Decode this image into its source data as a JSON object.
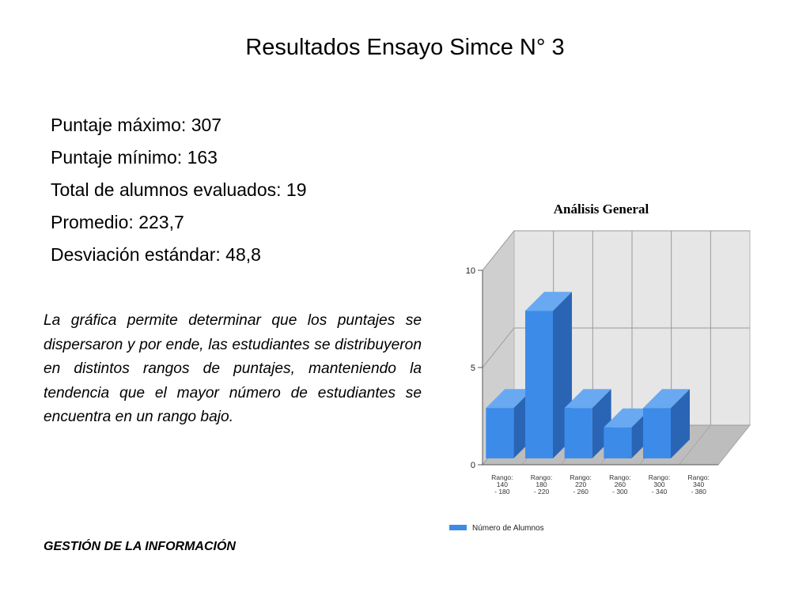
{
  "slide": {
    "title": "Resultados Ensayo Simce N° 3",
    "stats": [
      "Puntaje máximo: 307",
      "Puntaje mínimo: 163",
      "Total de alumnos evaluados: 19",
      "Promedio: 223,7",
      "Desviación estándar: 48,8"
    ],
    "description": "La gráfica permite determinar que los puntajes se dispersaron y por ende, las estudiantes se distribuyeron en distintos rangos de puntajes, manteniendo la tendencia que el mayor número de estudiantes se encuentra en un rango bajo.",
    "footer": "GESTIÓN DE LA INFORMACIÓN"
  },
  "chart_data": {
    "type": "bar",
    "title": "Análisis General",
    "categories": [
      [
        "Rango:",
        "140",
        "- 180"
      ],
      [
        "Rango:",
        "180",
        "- 220"
      ],
      [
        "Rango:",
        "220",
        "- 260"
      ],
      [
        "Rango:",
        "260",
        "- 300"
      ],
      [
        "Rango:",
        "300",
        "- 340"
      ],
      [
        "Rango:",
        "340",
        "- 380"
      ]
    ],
    "series": [
      {
        "name": "Número de Alumnos",
        "values": [
          3,
          8,
          3,
          2,
          3,
          0
        ]
      }
    ],
    "ylim": [
      0,
      10
    ],
    "yticks": [
      0,
      5,
      10
    ],
    "grid": true,
    "three_d": true,
    "legend": "bottom",
    "colors": {
      "bar_front": "#3c8be9",
      "bar_side": "#2a65b5",
      "bar_top": "#68a9f2",
      "back_wall": "#e6e6e6",
      "side_wall": "#cfcfcf",
      "floor": "#bdbdbd",
      "gridline": "#9a9a9a"
    }
  }
}
